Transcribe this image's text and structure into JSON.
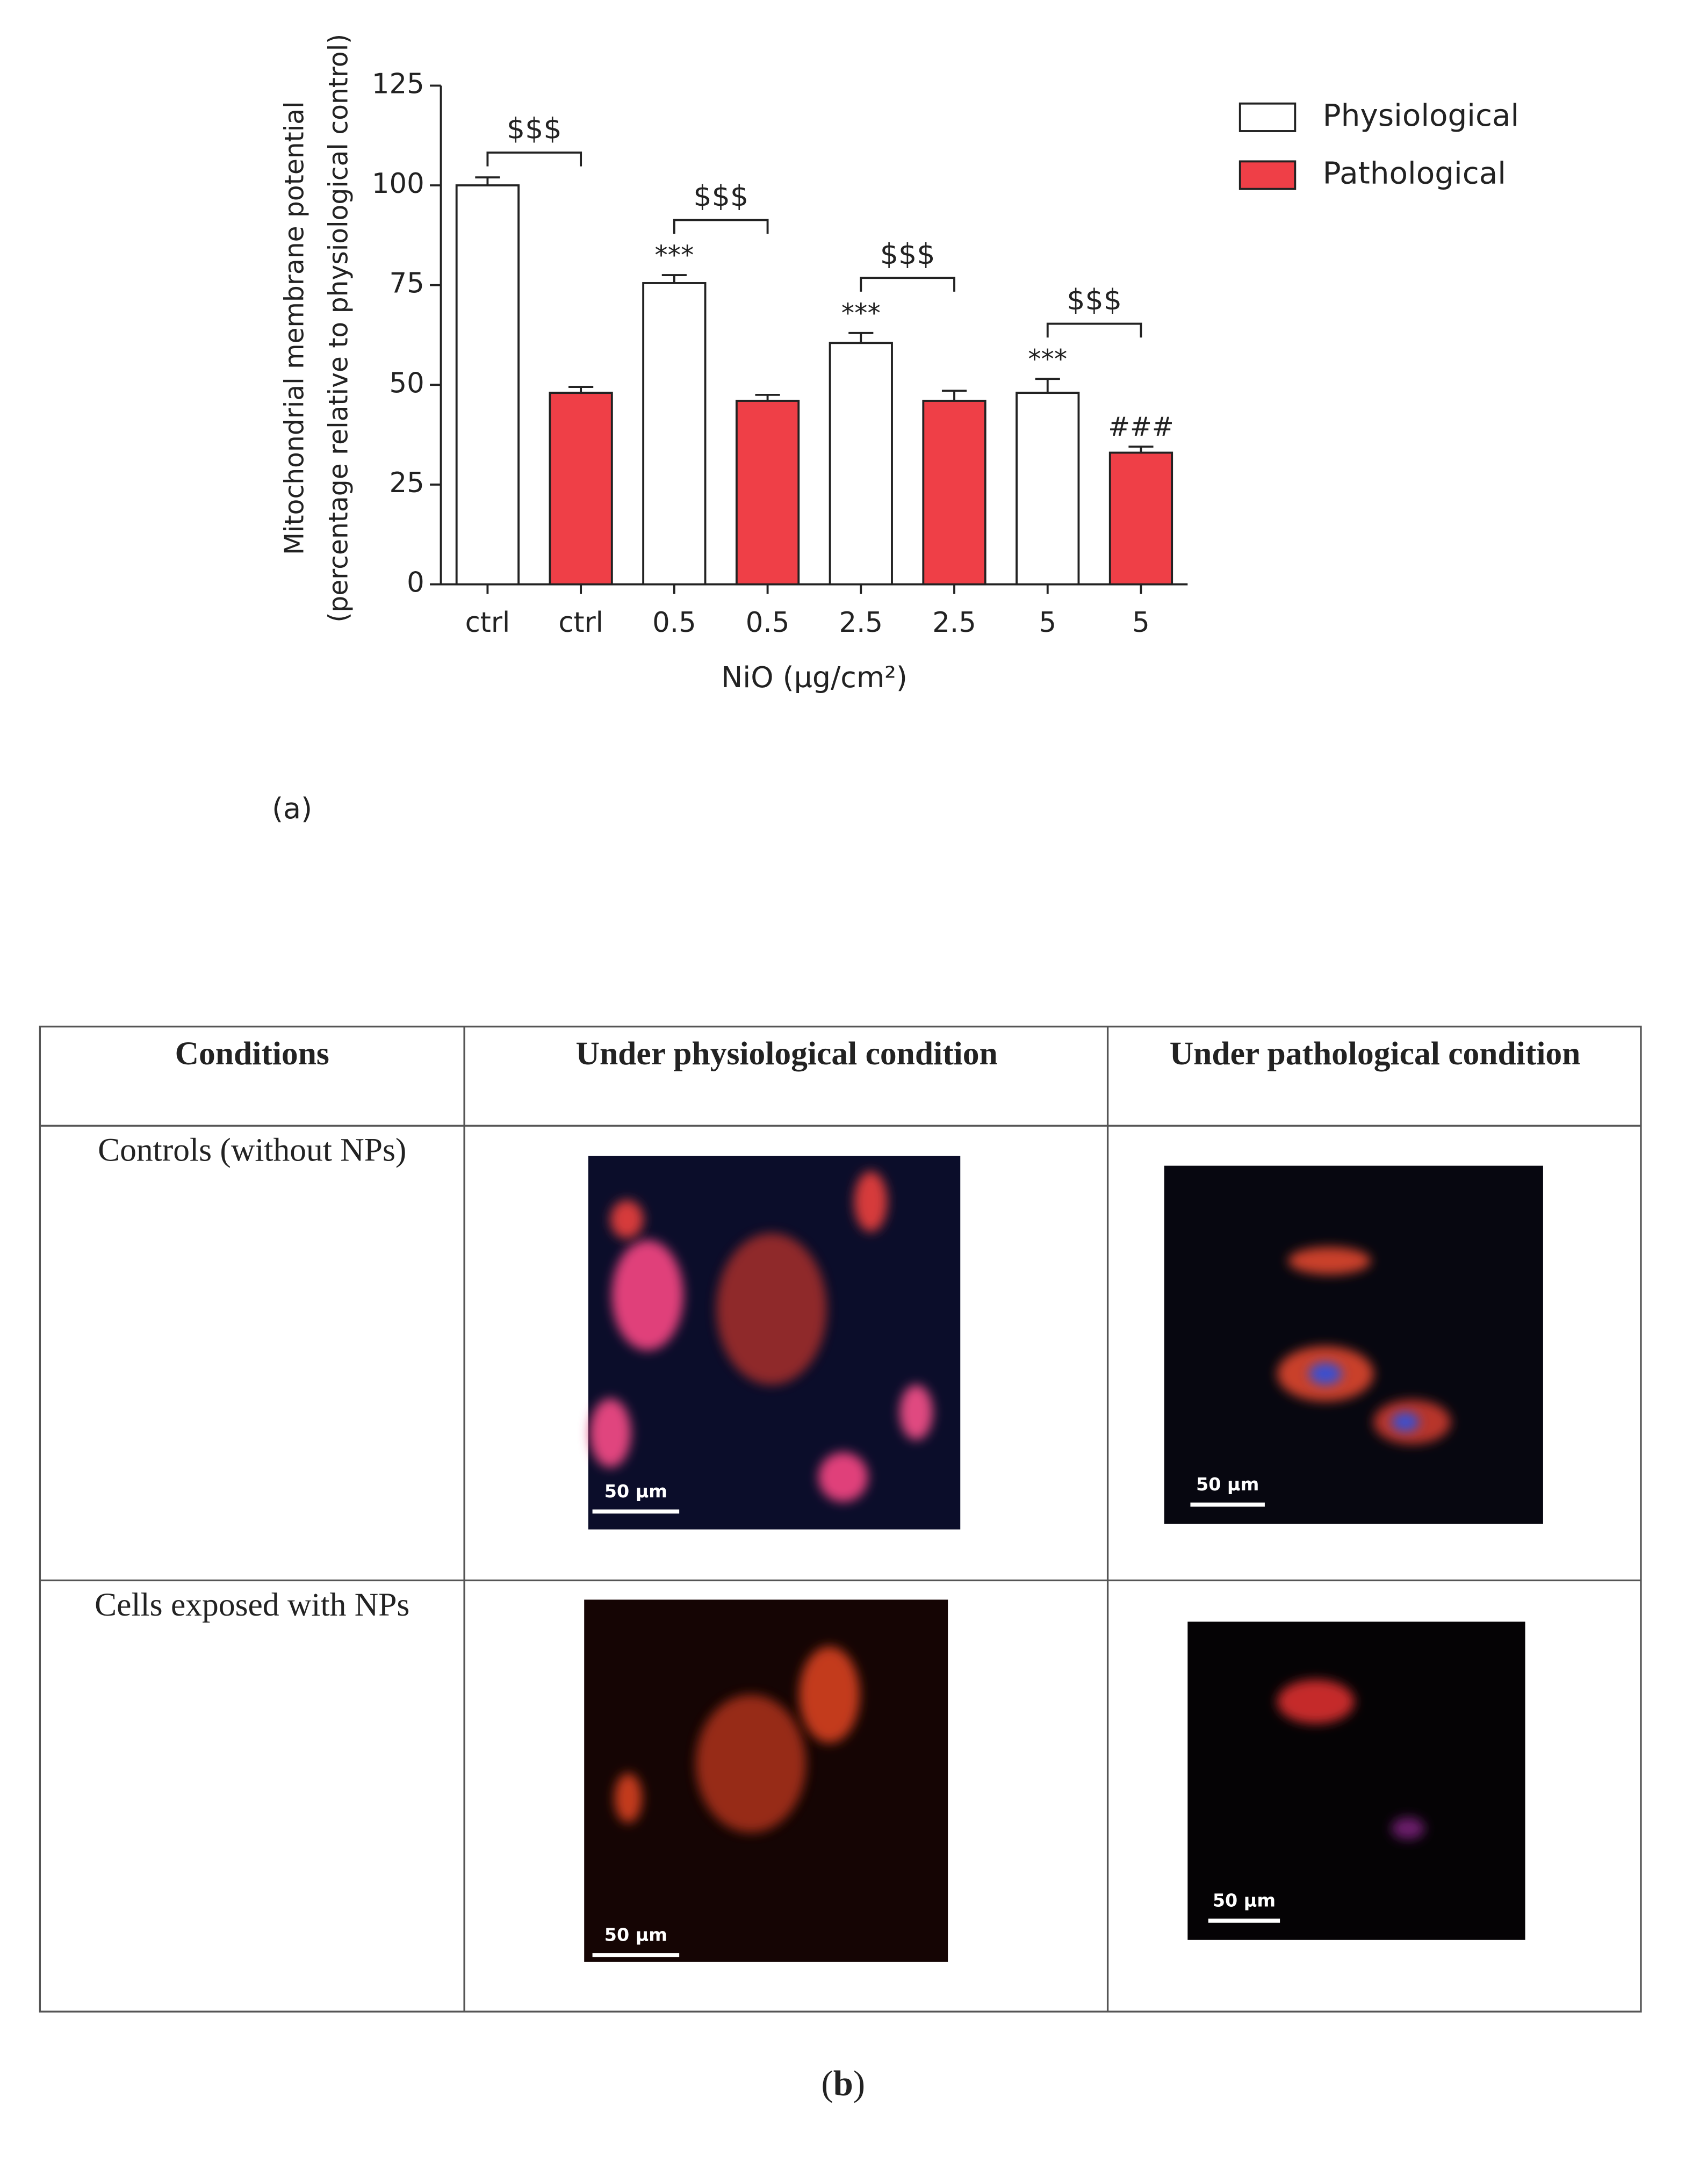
{
  "chart_data": {
    "type": "bar",
    "categories": [
      "ctrl",
      "ctrl",
      "0.5",
      "0.5",
      "2.5",
      "2.5",
      "5",
      "5"
    ],
    "series": [
      {
        "name": "Physiological",
        "color": "#ffffff",
        "values": [
          100,
          null,
          75.5,
          null,
          60.5,
          null,
          48,
          null
        ],
        "errors": [
          2,
          null,
          2,
          null,
          2.5,
          null,
          3.5,
          null
        ]
      },
      {
        "name": "Pathological",
        "color": "#ef3f47",
        "values": [
          null,
          48,
          null,
          46,
          null,
          46,
          null,
          33
        ],
        "errors": [
          null,
          1.5,
          null,
          1.5,
          null,
          2.5,
          null,
          1.5
        ]
      }
    ],
    "ylim": [
      0,
      125
    ],
    "yticks": [
      0,
      25,
      50,
      75,
      100,
      125
    ],
    "ylabel": [
      "Mitochondrial membrane potential",
      "(percentage relative to  physiological control)"
    ],
    "xlabel": "NiO (µg/cm²)",
    "bar_labels": [
      null,
      null,
      "***",
      null,
      "***",
      null,
      "***",
      "###"
    ],
    "pair_labels": [
      "$$$",
      "$$$",
      "$$$",
      "$$$"
    ],
    "legend": "upper right",
    "panel_label": "(a)"
  },
  "table": {
    "header": [
      "Conditions",
      "Under physiological condition",
      "Under pathological condition"
    ],
    "rows": [
      "Controls (without NPs)",
      "Cells exposed with NPs"
    ],
    "scale_bars": [
      [
        "50 µm",
        "50 µm"
      ],
      [
        "50 µm",
        "50 µm"
      ]
    ],
    "panel_label": [
      "(",
      "b",
      ")"
    ]
  }
}
